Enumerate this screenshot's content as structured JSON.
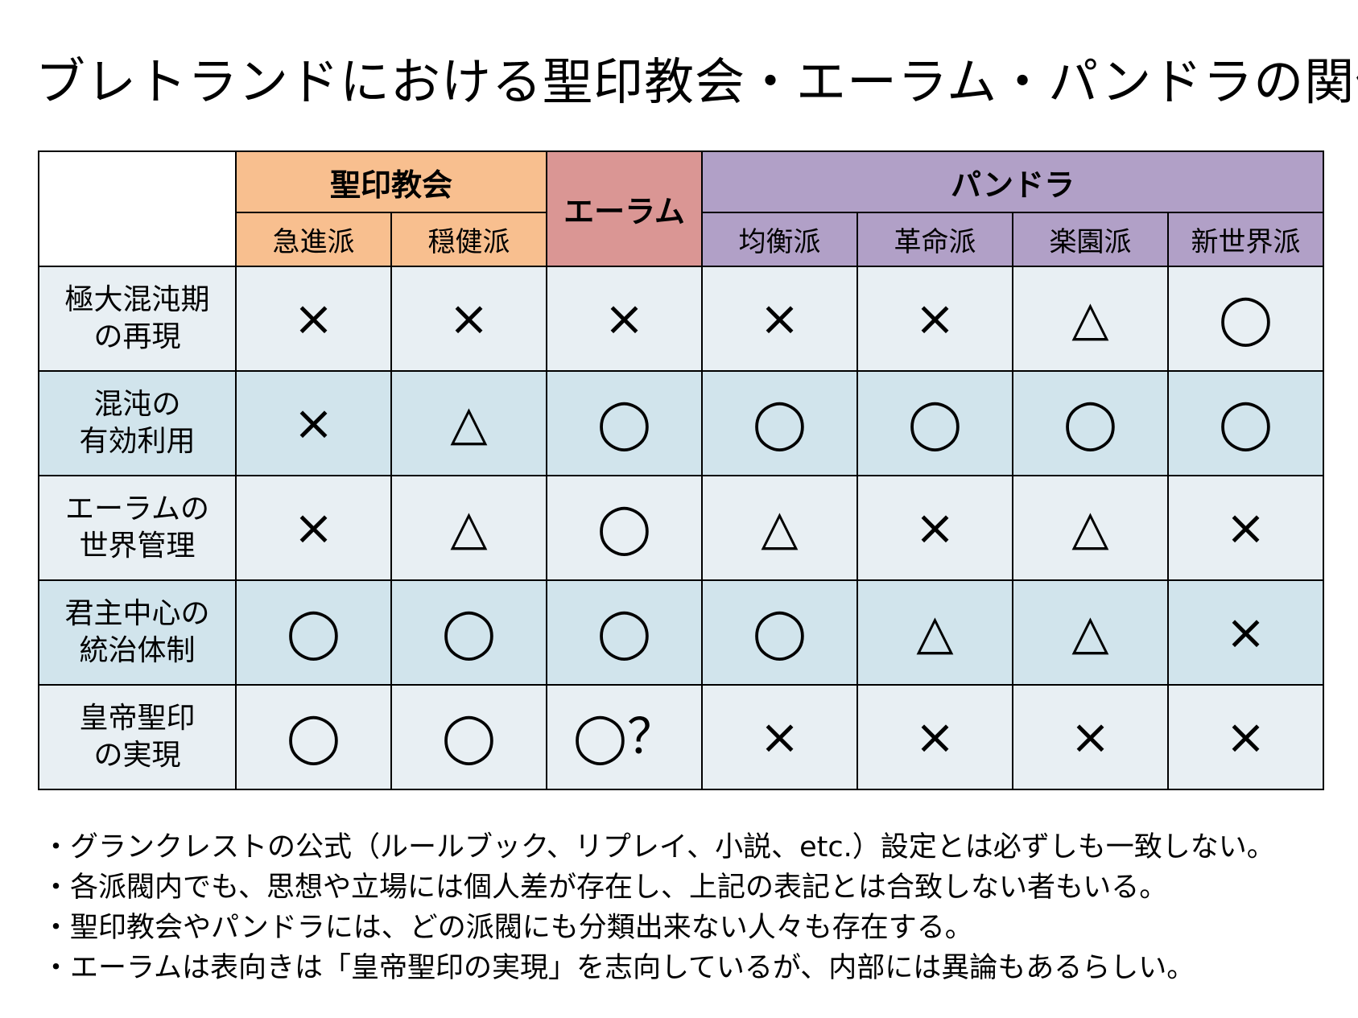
{
  "title": "ブレトランドにおける聖印教会・エーラム・パンドラの関係",
  "groups": {
    "seiin": "聖印教会",
    "eram": "エーラム",
    "pandora": "パンドラ"
  },
  "factions": {
    "kyushin": "急進派",
    "onken": "穏健派",
    "kinko": "均衡派",
    "kakumei": "革命派",
    "rakuen": "楽園派",
    "shinsekai": "新世界派"
  },
  "rows": [
    {
      "line1": "極大混沌期",
      "line2": "の再現",
      "marks": [
        "×",
        "×",
        "×",
        "×",
        "×",
        "△",
        "◯"
      ]
    },
    {
      "line1": "混沌の",
      "line2": "有効利用",
      "marks": [
        "×",
        "△",
        "◯",
        "◯",
        "◯",
        "◯",
        "◯"
      ]
    },
    {
      "line1": "エーラムの",
      "line2": "世界管理",
      "marks": [
        "×",
        "△",
        "◯",
        "△",
        "×",
        "△",
        "×"
      ]
    },
    {
      "line1": "君主中心の",
      "line2": "統治体制",
      "marks": [
        "◯",
        "◯",
        "◯",
        "◯",
        "△",
        "△",
        "×"
      ]
    },
    {
      "line1": "皇帝聖印",
      "line2": "の実現",
      "marks": [
        "◯",
        "◯",
        "◯？",
        "×",
        "×",
        "×",
        "×"
      ]
    }
  ],
  "notes": [
    "・グランクレストの公式（ルールブック、リプレイ、小説、etc.）設定とは必ずしも一致しない。",
    "・各派閥内でも、思想や立場には個人差が存在し、上記の表記とは合致しない者もいる。",
    "・聖印教会やパンドラには、どの派閥にも分類出来ない人々も存在する。",
    "・エーラムは表向きは「皇帝聖印の実現」を志向しているが、内部には異論もあるらしい。"
  ],
  "colors": {
    "seiin": "#f8bf8f",
    "eram": "#da9694",
    "pandora": "#b1a0c7",
    "row_light": "#e8eff3",
    "row_dark": "#d1e4ec"
  }
}
